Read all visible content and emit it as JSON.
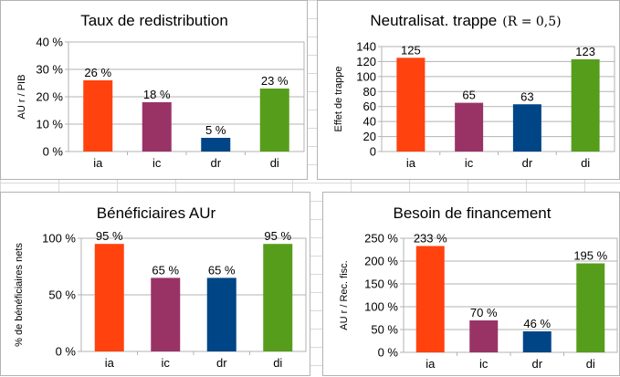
{
  "chart_data": [
    {
      "type": "bar",
      "title": "Taux de redistribution",
      "ylabel": "AU r / PIB",
      "categories": [
        "ia",
        "ic",
        "dr",
        "di"
      ],
      "values": [
        26,
        18,
        5,
        23
      ],
      "data_labels": [
        "26 %",
        "18 %",
        "5 %",
        "23 %"
      ],
      "colors": [
        "#ff420e",
        "#993366",
        "#004586",
        "#579d1c"
      ],
      "ylim": [
        0,
        40
      ],
      "yticks": [
        0,
        10,
        20,
        30,
        40
      ],
      "ytick_labels": [
        "0 %",
        "10 %",
        "20 %",
        "30 %",
        "40 %"
      ],
      "grid": true,
      "legend": "none"
    },
    {
      "type": "bar",
      "title": "Neutralisat. trappe",
      "title_math": "(R = 0,5)",
      "ylabel": "Effet de trappe",
      "categories": [
        "ia",
        "ic",
        "dr",
        "di"
      ],
      "values": [
        125,
        65,
        63,
        123
      ],
      "data_labels": [
        "125",
        "65",
        "63",
        "123"
      ],
      "colors": [
        "#ff420e",
        "#993366",
        "#004586",
        "#579d1c"
      ],
      "ylim": [
        0,
        140
      ],
      "yticks": [
        0,
        20,
        40,
        60,
        80,
        100,
        120,
        140
      ],
      "ytick_labels": [
        "0",
        "20",
        "40",
        "60",
        "80",
        "100",
        "120",
        "140"
      ],
      "grid": true,
      "legend": "none"
    },
    {
      "type": "bar",
      "title": "Bénéficiaires AUr",
      "ylabel": "% de bénéficiaires nets",
      "categories": [
        "ia",
        "ic",
        "dr",
        "di"
      ],
      "values": [
        95,
        65,
        65,
        95
      ],
      "data_labels": [
        "95 %",
        "65 %",
        "65 %",
        "95 %"
      ],
      "colors": [
        "#ff420e",
        "#993366",
        "#004586",
        "#579d1c"
      ],
      "ylim": [
        0,
        100
      ],
      "yticks": [
        0,
        50,
        100
      ],
      "ytick_labels": [
        "0 %",
        "50 %",
        "100 %"
      ],
      "grid": true,
      "legend": "none"
    },
    {
      "type": "bar",
      "title": "Besoin de financement",
      "ylabel": "AU r / Rec. fisc.",
      "categories": [
        "ia",
        "ic",
        "dr",
        "di"
      ],
      "values": [
        233,
        70,
        46,
        195
      ],
      "data_labels": [
        "233 %",
        "70 %",
        "46 %",
        "195 %"
      ],
      "colors": [
        "#ff420e",
        "#993366",
        "#004586",
        "#579d1c"
      ],
      "ylim": [
        0,
        250
      ],
      "yticks": [
        0,
        50,
        100,
        150,
        200,
        250
      ],
      "ytick_labels": [
        "0 %",
        "50 %",
        "100 %",
        "150 %",
        "200 %",
        "250 %"
      ],
      "grid": true,
      "legend": "none"
    }
  ]
}
